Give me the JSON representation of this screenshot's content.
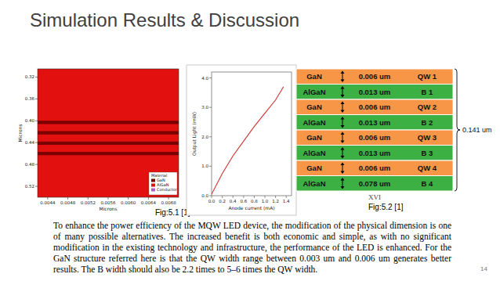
{
  "title": "Simulation Results & Discussion",
  "figure_5_1": {
    "caption": "Fig:5.1 [1]",
    "x_label": "Microns",
    "y_label": "Microns",
    "xlim": [
      0.0042,
      0.007
    ],
    "ylim": [
      0.305,
      0.54
    ],
    "xticks": [
      {
        "value": 0.0044,
        "label": "0.0044"
      },
      {
        "value": 0.0048,
        "label": "0.0048"
      },
      {
        "value": 0.0052,
        "label": "0.0052"
      },
      {
        "value": 0.0056,
        "label": "0.0056"
      },
      {
        "value": 0.006,
        "label": "0.0060"
      },
      {
        "value": 0.0064,
        "label": "0.0064"
      },
      {
        "value": 0.0068,
        "label": "0.0068"
      }
    ],
    "yticks": [
      {
        "value": 0.32,
        "label": "0.32"
      },
      {
        "value": 0.36,
        "label": "0.36"
      },
      {
        "value": 0.4,
        "label": "0.40"
      },
      {
        "value": 0.44,
        "label": "0.44"
      },
      {
        "value": 0.48,
        "label": "0.48"
      },
      {
        "value": 0.52,
        "label": "0.52"
      }
    ],
    "wells": [
      {
        "start": 0.4,
        "end": 0.406
      },
      {
        "start": 0.419,
        "end": 0.425
      },
      {
        "start": 0.438,
        "end": 0.444
      },
      {
        "start": 0.457,
        "end": 0.463
      }
    ],
    "legend": {
      "title": "Material",
      "entries": [
        {
          "name": "GaN",
          "color": "#7a0000"
        },
        {
          "name": "AlGaN",
          "color": "#e31010"
        },
        {
          "name": "Conductor",
          "color": "#b060c0"
        }
      ]
    }
  },
  "chart_data": {
    "type": "line",
    "x_label": "Anode current (mA)",
    "y_label": "Output Light (mW)",
    "x": [
      0,
      0.2,
      0.4,
      0.6,
      0.8,
      1.0,
      1.2,
      1.35
    ],
    "values": [
      0.05,
      0.75,
      1.35,
      1.85,
      2.35,
      2.8,
      3.25,
      3.7
    ],
    "color": "#d03030",
    "xlim": [
      0,
      1.5
    ],
    "ylim": [
      0,
      4.2
    ],
    "xticks": [
      {
        "value": 0,
        "label": "0.0"
      },
      {
        "value": 0.2,
        "label": "0.2"
      },
      {
        "value": 0.4,
        "label": "0.4"
      },
      {
        "value": 0.6,
        "label": "0.6"
      },
      {
        "value": 0.8,
        "label": "0.8"
      },
      {
        "value": 1.0,
        "label": "1.0"
      },
      {
        "value": 1.2,
        "label": "1.2"
      },
      {
        "value": 1.4,
        "label": "1.4"
      }
    ],
    "yticks": [
      {
        "value": 0,
        "label": "0.0"
      },
      {
        "value": 1,
        "label": "1.0"
      },
      {
        "value": 2,
        "label": "2.0"
      },
      {
        "value": 3,
        "label": "3.0"
      },
      {
        "value": 4,
        "label": "4.0"
      }
    ],
    "grid": false
  },
  "figure_5_2": {
    "caption": "Fig:5.2 [1]",
    "note": "XVI",
    "total": "0.141 um",
    "layers": [
      {
        "material": "GaN",
        "thickness": "0.006 um",
        "label": "QW 1"
      },
      {
        "material": "AlGaN",
        "thickness": "0.013 um",
        "label": "B 1"
      },
      {
        "material": "GaN",
        "thickness": "0.006 um",
        "label": "QW 2"
      },
      {
        "material": "AlGaN",
        "thickness": "0.013 um",
        "label": "B 2"
      },
      {
        "material": "GaN",
        "thickness": "0.006 um",
        "label": "QW 3"
      },
      {
        "material": "AlGaN",
        "thickness": "0.013 um",
        "label": "B 3"
      },
      {
        "material": "GaN",
        "thickness": "0.006 um",
        "label": "QW 4"
      },
      {
        "material": "AlGaN",
        "thickness": "0.078 um",
        "label": "B 4"
      }
    ]
  },
  "body": "To enhance the power efficiency of the MQW LED device, the modification of the physical dimension is one of many possible alternatives. The increased benefit is both economic and simple, as with no significant modification in the existing technology and infrastructure, the performance of the LED is enhanced. For the GaN structure referred here is that the QW width range between 0.003 um and 0.006 um generates better results. The B width should also be 2.2 times to 5–6 times the QW width.",
  "page_number": "14"
}
